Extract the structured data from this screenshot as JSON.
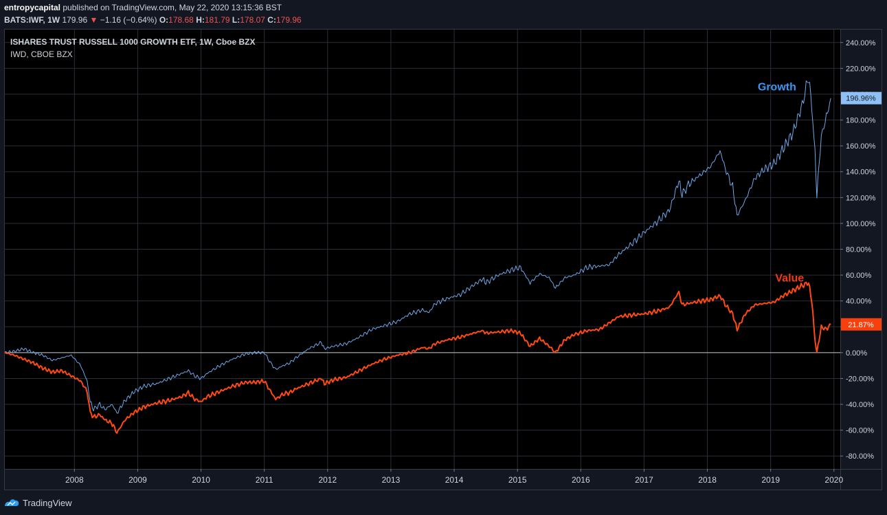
{
  "header": {
    "publisher": "entropycapital",
    "published_text": "published on TradingView.com, May 22, 2020 13:15:36 BST",
    "symbol": "BATS:IWF, 1W",
    "last": "179.96",
    "change": "−1.16 (−0.64%)",
    "open_label": "O:",
    "open": "178.68",
    "high_label": "H:",
    "high": "181.79",
    "low_label": "L:",
    "low": "178.07",
    "close_label": "C:",
    "close": "179.96"
  },
  "legend": {
    "main": "ISHARES TRUST RUSSELL 1000 GROWTH ETF, 1W, Cboe BZX",
    "compare": "IWD, CBOE BZX"
  },
  "footer": {
    "brand": "TradingView"
  },
  "colors": {
    "growth": "#6ea8e8",
    "value": "#ff4a12",
    "background": "#131722",
    "grid": "#2a2e39",
    "axis_text": "#d1d4dc",
    "badge_growth": "#8fc0f5",
    "badge_value": "#f7400c",
    "growth_label": "#3a98f5",
    "value_label": "#f23a1a"
  },
  "chart_data": {
    "type": "line",
    "y_unit": "%",
    "ylim": [
      -90,
      250
    ],
    "y_ticks": [
      "240.00%",
      "220.00%",
      "200.00%",
      "180.00%",
      "160.00%",
      "140.00%",
      "120.00%",
      "100.00%",
      "80.00%",
      "60.00%",
      "40.00%",
      "20.00%",
      "0.00%",
      "-20.00%",
      "-40.00%",
      "-60.00%",
      "-80.00%"
    ],
    "x_ticks": [
      "2008",
      "2009",
      "2010",
      "2011",
      "2012",
      "2013",
      "2014",
      "2015",
      "2016",
      "2017",
      "2018",
      "2019",
      "2020"
    ],
    "xlim": [
      2007.4,
      2020.6
    ],
    "grid": true,
    "zero_line": true,
    "annotations": [
      {
        "text": "Growth",
        "series": "growth",
        "x": 2019.6,
        "y": 203
      },
      {
        "text": "Value",
        "series": "value",
        "x": 2019.8,
        "y": 55
      }
    ],
    "last_value_badges": [
      {
        "series": "growth",
        "text": "196.96%",
        "y": 196.96
      },
      {
        "series": "value",
        "text": "21.87%",
        "y": 21.87
      }
    ],
    "series": [
      {
        "id": "growth",
        "points": [
          [
            2007.4,
            0
          ],
          [
            2007.55,
            1
          ],
          [
            2007.7,
            3
          ],
          [
            2007.85,
            0
          ],
          [
            2008.0,
            -2
          ],
          [
            2008.15,
            -6
          ],
          [
            2008.3,
            -4
          ],
          [
            2008.45,
            -2
          ],
          [
            2008.6,
            -10
          ],
          [
            2008.7,
            -22
          ],
          [
            2008.75,
            -38
          ],
          [
            2008.8,
            -44
          ],
          [
            2008.9,
            -40
          ],
          [
            2008.98,
            -44
          ],
          [
            2009.1,
            -40
          ],
          [
            2009.17,
            -47
          ],
          [
            2009.3,
            -37
          ],
          [
            2009.45,
            -30
          ],
          [
            2009.6,
            -26
          ],
          [
            2009.8,
            -24
          ],
          [
            2010.0,
            -20
          ],
          [
            2010.2,
            -16
          ],
          [
            2010.3,
            -14
          ],
          [
            2010.4,
            -18
          ],
          [
            2010.5,
            -20
          ],
          [
            2010.6,
            -16
          ],
          [
            2010.8,
            -10
          ],
          [
            2011.0,
            -5
          ],
          [
            2011.2,
            -1
          ],
          [
            2011.35,
            0
          ],
          [
            2011.5,
            0
          ],
          [
            2011.6,
            -8
          ],
          [
            2011.68,
            -13
          ],
          [
            2011.8,
            -10
          ],
          [
            2011.9,
            -8
          ],
          [
            2012.0,
            -4
          ],
          [
            2012.2,
            3
          ],
          [
            2012.4,
            8
          ],
          [
            2012.45,
            3
          ],
          [
            2012.6,
            5
          ],
          [
            2012.8,
            7
          ],
          [
            2013.0,
            12
          ],
          [
            2013.2,
            18
          ],
          [
            2013.4,
            21
          ],
          [
            2013.6,
            24
          ],
          [
            2013.8,
            30
          ],
          [
            2014.0,
            33
          ],
          [
            2014.1,
            31
          ],
          [
            2014.2,
            38
          ],
          [
            2014.4,
            42
          ],
          [
            2014.6,
            45
          ],
          [
            2014.8,
            52
          ],
          [
            2014.95,
            57
          ],
          [
            2015.0,
            54
          ],
          [
            2015.2,
            60
          ],
          [
            2015.4,
            64
          ],
          [
            2015.55,
            66
          ],
          [
            2015.62,
            60
          ],
          [
            2015.7,
            54
          ],
          [
            2015.85,
            61
          ],
          [
            2016.0,
            58
          ],
          [
            2016.1,
            50
          ],
          [
            2016.25,
            58
          ],
          [
            2016.4,
            60
          ],
          [
            2016.6,
            66
          ],
          [
            2016.8,
            67
          ],
          [
            2016.95,
            68
          ],
          [
            2017.1,
            76
          ],
          [
            2017.3,
            84
          ],
          [
            2017.5,
            93
          ],
          [
            2017.7,
            101
          ],
          [
            2017.9,
            110
          ],
          [
            2018.05,
            133
          ],
          [
            2018.1,
            122
          ],
          [
            2018.2,
            130
          ],
          [
            2018.4,
            138
          ],
          [
            2018.55,
            144
          ],
          [
            2018.7,
            156
          ],
          [
            2018.8,
            140
          ],
          [
            2018.9,
            128
          ],
          [
            2018.97,
            106
          ],
          [
            2019.1,
            118
          ],
          [
            2019.25,
            135
          ],
          [
            2019.4,
            142
          ],
          [
            2019.55,
            146
          ],
          [
            2019.7,
            158
          ],
          [
            2019.85,
            170
          ],
          [
            2020.0,
            192
          ],
          [
            2020.1,
            214
          ],
          [
            2020.15,
            190
          ],
          [
            2020.2,
            155
          ],
          [
            2020.23,
            122
          ],
          [
            2020.3,
            168
          ],
          [
            2020.38,
            182
          ],
          [
            2020.45,
            196.96
          ]
        ]
      },
      {
        "id": "value",
        "points": [
          [
            2007.4,
            0
          ],
          [
            2007.55,
            -2
          ],
          [
            2007.7,
            -5
          ],
          [
            2007.85,
            -8
          ],
          [
            2008.0,
            -12
          ],
          [
            2008.15,
            -15
          ],
          [
            2008.3,
            -14
          ],
          [
            2008.45,
            -18
          ],
          [
            2008.6,
            -22
          ],
          [
            2008.7,
            -30
          ],
          [
            2008.75,
            -46
          ],
          [
            2008.8,
            -50
          ],
          [
            2008.9,
            -48
          ],
          [
            2008.98,
            -52
          ],
          [
            2009.1,
            -55
          ],
          [
            2009.17,
            -62
          ],
          [
            2009.3,
            -52
          ],
          [
            2009.45,
            -46
          ],
          [
            2009.6,
            -42
          ],
          [
            2009.8,
            -39
          ],
          [
            2010.0,
            -37
          ],
          [
            2010.2,
            -34
          ],
          [
            2010.3,
            -31
          ],
          [
            2010.4,
            -36
          ],
          [
            2010.5,
            -38
          ],
          [
            2010.6,
            -34
          ],
          [
            2010.8,
            -30
          ],
          [
            2011.0,
            -26
          ],
          [
            2011.2,
            -23
          ],
          [
            2011.35,
            -23
          ],
          [
            2011.5,
            -22
          ],
          [
            2011.6,
            -30
          ],
          [
            2011.68,
            -36
          ],
          [
            2011.8,
            -32
          ],
          [
            2011.9,
            -31
          ],
          [
            2012.0,
            -28
          ],
          [
            2012.2,
            -24
          ],
          [
            2012.4,
            -20
          ],
          [
            2012.45,
            -24
          ],
          [
            2012.6,
            -21
          ],
          [
            2012.8,
            -19
          ],
          [
            2013.0,
            -14
          ],
          [
            2013.2,
            -9
          ],
          [
            2013.4,
            -5
          ],
          [
            2013.6,
            -2
          ],
          [
            2013.8,
            0
          ],
          [
            2014.0,
            4
          ],
          [
            2014.1,
            3
          ],
          [
            2014.2,
            7
          ],
          [
            2014.4,
            10
          ],
          [
            2014.6,
            12
          ],
          [
            2014.8,
            15
          ],
          [
            2014.95,
            17
          ],
          [
            2015.0,
            15
          ],
          [
            2015.2,
            16
          ],
          [
            2015.4,
            17
          ],
          [
            2015.55,
            15
          ],
          [
            2015.62,
            10
          ],
          [
            2015.7,
            5
          ],
          [
            2015.85,
            11
          ],
          [
            2016.0,
            5
          ],
          [
            2016.1,
            0
          ],
          [
            2016.25,
            10
          ],
          [
            2016.4,
            14
          ],
          [
            2016.6,
            17
          ],
          [
            2016.8,
            18
          ],
          [
            2016.95,
            23
          ],
          [
            2017.1,
            28
          ],
          [
            2017.3,
            29
          ],
          [
            2017.5,
            30
          ],
          [
            2017.7,
            32
          ],
          [
            2017.9,
            35
          ],
          [
            2018.05,
            47
          ],
          [
            2018.1,
            37
          ],
          [
            2018.2,
            38
          ],
          [
            2018.4,
            40
          ],
          [
            2018.55,
            41
          ],
          [
            2018.7,
            44
          ],
          [
            2018.8,
            36
          ],
          [
            2018.9,
            30
          ],
          [
            2018.97,
            18
          ],
          [
            2019.1,
            30
          ],
          [
            2019.25,
            37
          ],
          [
            2019.4,
            38
          ],
          [
            2019.55,
            39
          ],
          [
            2019.7,
            44
          ],
          [
            2019.85,
            48
          ],
          [
            2020.0,
            52
          ],
          [
            2020.1,
            54
          ],
          [
            2020.15,
            40
          ],
          [
            2020.2,
            10
          ],
          [
            2020.23,
            0
          ],
          [
            2020.3,
            20
          ],
          [
            2020.38,
            18
          ],
          [
            2020.45,
            21.87
          ]
        ]
      }
    ]
  }
}
